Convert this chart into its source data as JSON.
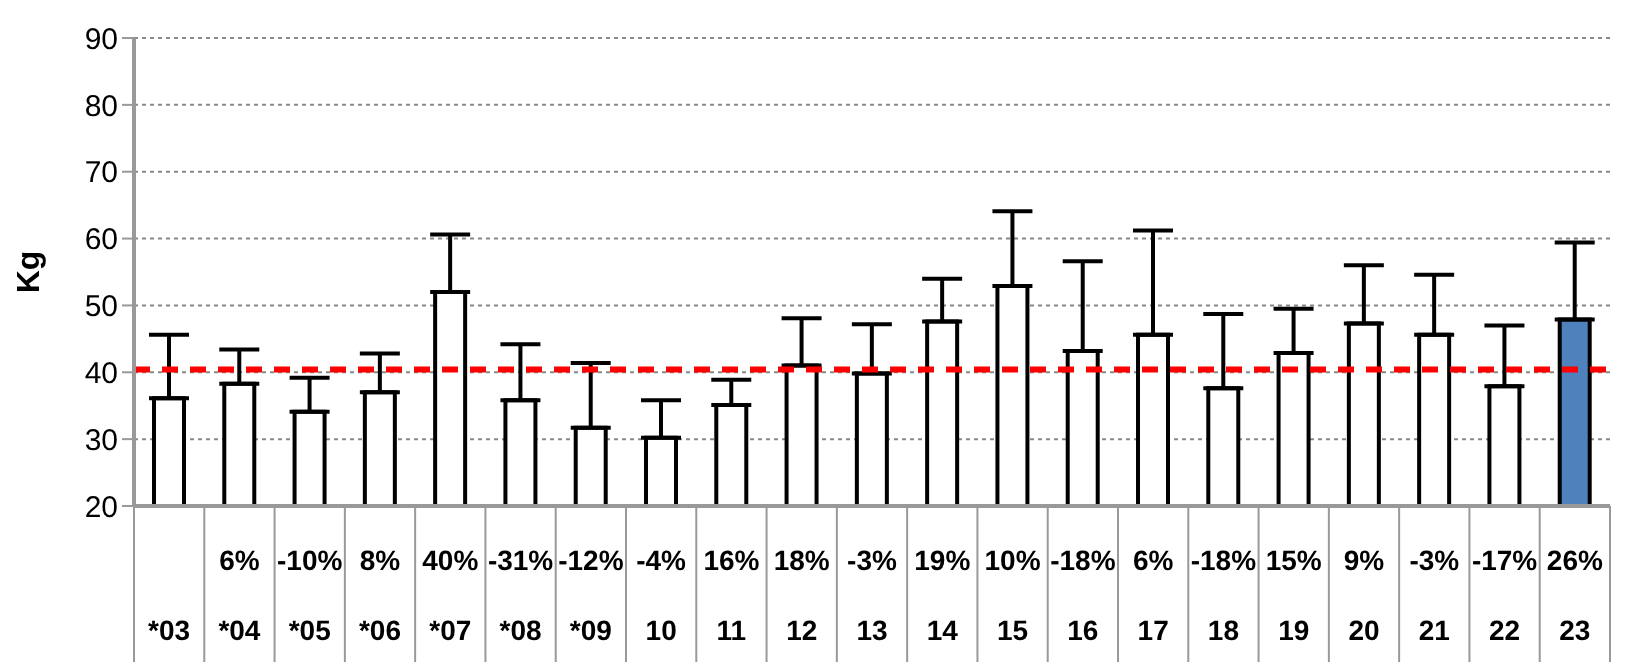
{
  "chart_data": {
    "type": "bar",
    "ylabel": "Kg",
    "categories": [
      "*03",
      "*04",
      "*05",
      "*06",
      "*07",
      "*08",
      "*09",
      "10",
      "11",
      "12",
      "13",
      "14",
      "15",
      "16",
      "17",
      "18",
      "19",
      "20",
      "21",
      "22",
      "23"
    ],
    "values": [
      36.1,
      38.3,
      34.1,
      37.0,
      52.0,
      35.8,
      31.7,
      30.2,
      35.1,
      41.0,
      39.8,
      47.6,
      52.9,
      43.2,
      45.6,
      37.6,
      42.9,
      47.3,
      45.6,
      37.9,
      47.9
    ],
    "errors": [
      [
        36.1,
        45.6
      ],
      [
        38.3,
        43.4
      ],
      [
        34.1,
        39.2
      ],
      [
        37.0,
        42.8
      ],
      [
        52.0,
        60.6
      ],
      [
        35.8,
        44.2
      ],
      [
        31.7,
        41.4
      ],
      [
        30.2,
        35.8
      ],
      [
        35.1,
        38.9
      ],
      [
        41.0,
        48.1
      ],
      [
        39.8,
        47.2
      ],
      [
        47.6,
        54.0
      ],
      [
        52.9,
        64.1
      ],
      [
        43.2,
        56.6
      ],
      [
        45.6,
        61.2
      ],
      [
        37.6,
        48.7
      ],
      [
        42.9,
        49.5
      ],
      [
        47.3,
        56.0
      ],
      [
        45.6,
        54.6
      ],
      [
        37.9,
        47.0
      ],
      [
        47.9,
        59.4
      ]
    ],
    "colors": [
      "#ffffff",
      "#ffffff",
      "#ffffff",
      "#ffffff",
      "#ffffff",
      "#ffffff",
      "#ffffff",
      "#ffffff",
      "#ffffff",
      "#ffffff",
      "#ffffff",
      "#ffffff",
      "#ffffff",
      "#ffffff",
      "#ffffff",
      "#ffffff",
      "#ffffff",
      "#ffffff",
      "#ffffff",
      "#ffffff",
      "#4f81bd"
    ],
    "ylim": [
      20,
      90
    ],
    "yticks": [
      20,
      30,
      40,
      50,
      60,
      70,
      80,
      90
    ],
    "grid": "y",
    "legend": false,
    "ref_lines": [
      {
        "axis": "y",
        "value": 40.4,
        "color": "#ff0000",
        "line_style": "dashed"
      }
    ],
    "annotations": [
      "6%",
      "-10%",
      "8%",
      "40%",
      "-31%",
      "-12%",
      "-4%",
      "16%",
      "18%",
      "-3%",
      "19%",
      "10%",
      "-18%",
      "6%",
      "-18%",
      "15%",
      "9%",
      "-3%",
      "-17%",
      "26%"
    ]
  }
}
